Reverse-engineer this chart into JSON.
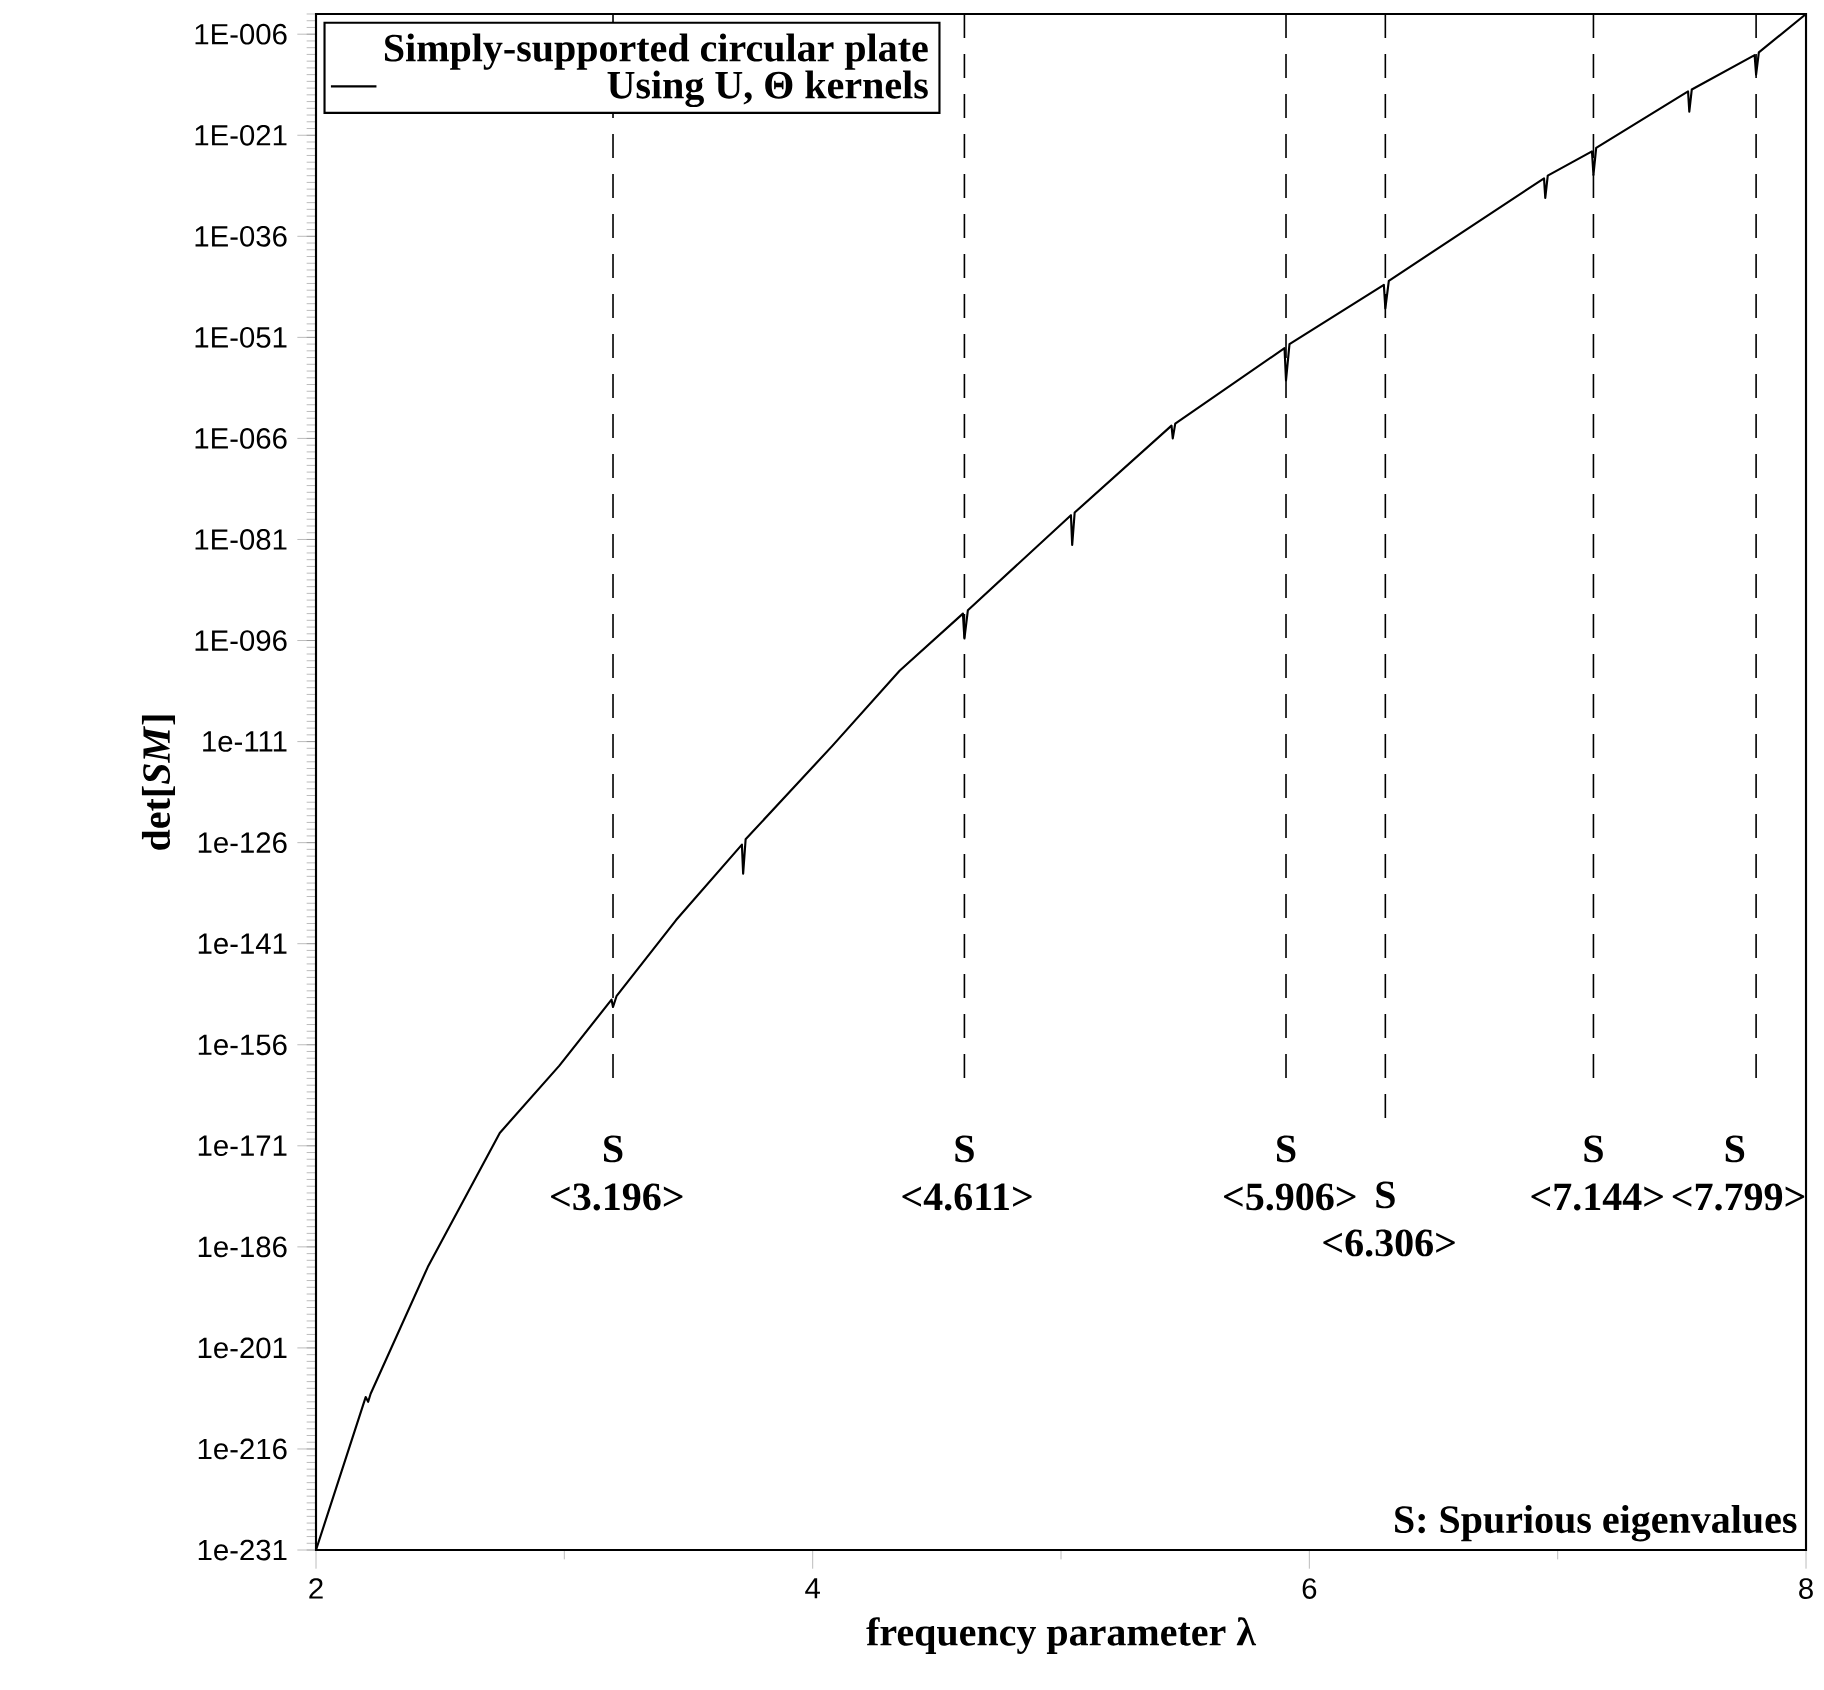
{
  "chart_data": {
    "type": "line",
    "xlabel": "frequency parameter λ",
    "ylabel": "det[*SM*]",
    "legend_title": "Simply-supported circular plate",
    "legend": "top left",
    "log": "y",
    "grid": false,
    "x": [
      2.0,
      2.2,
      2.21,
      2.22,
      2.45,
      2.74,
      2.98,
      3.19,
      3.196,
      3.21,
      3.45,
      3.715,
      3.72,
      3.73,
      4.08,
      4.35,
      4.605,
      4.611,
      4.625,
      5.04,
      5.045,
      5.055,
      5.445,
      5.45,
      5.46,
      5.9,
      5.906,
      5.92,
      6.3,
      6.306,
      6.32,
      6.945,
      6.95,
      6.96,
      7.138,
      7.144,
      7.155,
      7.525,
      7.53,
      7.54,
      7.793,
      7.799,
      7.81,
      8.0
    ],
    "series": [
      {
        "name": "Using U, Θ kernels",
        "color": "#000000",
        "values": [
          1e-231,
          5e-209,
          1e-209,
          1.6e-208,
          1e-189,
          7.9e-170,
          7.9e-160,
          5e-150,
          4e-151,
          1.6e-149,
          3.2e-138,
          5e-127,
          2.5e-131,
          3.2e-126,
          2.5e-112,
          3.2e-101,
          1e-92,
          2e-96,
          3.2e-92,
          4e-78,
          1.6e-82,
          1e-77,
          7.9e-65,
          1e-66,
          1.6e-64,
          2.5e-53,
          4e-58,
          1e-52,
          6.3e-44,
          2e-47,
          2.5e-43,
          4e-28,
          5e-31,
          1e-27,
          4e-24,
          1.3e-27,
          1.3e-23,
          3.2e-15,
          3.2e-18,
          6.3e-15,
          7.9e-10,
          1e-12,
          2e-09,
          0.001
        ]
      }
    ],
    "xlim": [
      2,
      8
    ],
    "ylim": [
      1e-231,
      0.001
    ],
    "xticks": [
      2,
      {
        "value": 3,
        "label": null
      },
      4,
      {
        "value": 5,
        "label": null
      },
      6,
      {
        "value": 7,
        "label": null
      },
      8
    ],
    "yticks": [
      {
        "value": 1e-231,
        "label": "1e-231"
      },
      {
        "value": 1e-216,
        "label": "1e-216"
      },
      {
        "value": 1e-201,
        "label": "1e-201"
      },
      {
        "value": 1e-186,
        "label": "1e-186"
      },
      {
        "value": 1e-171,
        "label": "1e-171"
      },
      {
        "value": 1e-156,
        "label": "1e-156"
      },
      {
        "value": 1e-141,
        "label": "1e-141"
      },
      {
        "value": 1e-126,
        "label": "1e-126"
      },
      {
        "value": 1e-111,
        "label": "1e-111"
      },
      {
        "value": 1e-96,
        "label": "1E-096"
      },
      {
        "value": 1e-81,
        "label": "1E-081"
      },
      {
        "value": 1e-66,
        "label": "1E-066"
      },
      {
        "value": 1e-51,
        "label": "1E-051"
      },
      {
        "value": 1e-36,
        "label": "1E-036"
      },
      {
        "value": 1e-21,
        "label": "1E-021"
      },
      {
        "value": 1e-06,
        "label": "1E-006"
      }
    ],
    "ref_lines": [
      {
        "axis": "x",
        "value": 3.196,
        "line_style": "dashed"
      },
      {
        "axis": "x",
        "value": 4.611,
        "line_style": "dashed"
      },
      {
        "axis": "x",
        "value": 5.906,
        "line_style": "dashed"
      },
      {
        "axis": "x",
        "value": 6.306,
        "line_style": "dashed"
      },
      {
        "axis": "x",
        "value": 7.144,
        "line_style": "dashed"
      },
      {
        "axis": "x",
        "value": 7.799,
        "line_style": "dashed"
      }
    ],
    "annotations": [
      "S <3.196>",
      "S <4.611>",
      "S <5.906>",
      "S <6.306>",
      "S <7.144>",
      "S <7.799>",
      "S: Spurious eigenvalues"
    ]
  }
}
